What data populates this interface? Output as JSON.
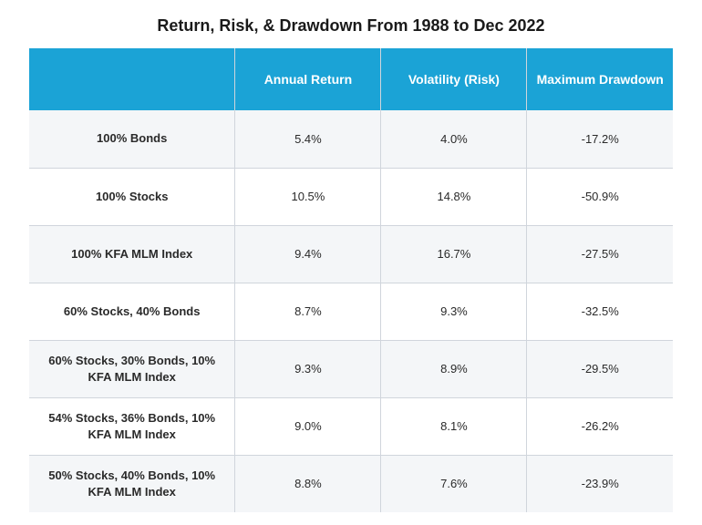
{
  "title": "Return, Risk, & Drawdown From 1988 to Dec 2022",
  "type": "table",
  "header_bg": "#1ba3d6",
  "header_fg": "#ffffff",
  "grid_color": "#d0d5dc",
  "row_alt_bg": "#f4f6f8",
  "row_bg": "#ffffff",
  "title_fontsize": 18,
  "header_fontsize": 14,
  "cell_fontsize": 13,
  "columns": [
    "",
    "Annual Return",
    "Volatility (Risk)",
    "Maximum Drawdown"
  ],
  "column_widths_pct": [
    32,
    22.666,
    22.666,
    22.666
  ],
  "rows": [
    {
      "label": "100% Bonds",
      "annual_return": "5.4%",
      "volatility": "4.0%",
      "max_drawdown": "-17.2%"
    },
    {
      "label": "100% Stocks",
      "annual_return": "10.5%",
      "volatility": "14.8%",
      "max_drawdown": "-50.9%"
    },
    {
      "label": "100% KFA MLM Index",
      "annual_return": "9.4%",
      "volatility": "16.7%",
      "max_drawdown": "-27.5%"
    },
    {
      "label": "60% Stocks, 40% Bonds",
      "annual_return": "8.7%",
      "volatility": "9.3%",
      "max_drawdown": "-32.5%"
    },
    {
      "label": "60% Stocks, 30% Bonds, 10% KFA MLM Index",
      "annual_return": "9.3%",
      "volatility": "8.9%",
      "max_drawdown": "-29.5%"
    },
    {
      "label": "54% Stocks, 36% Bonds, 10% KFA MLM Index",
      "annual_return": "9.0%",
      "volatility": "8.1%",
      "max_drawdown": "-26.2%"
    },
    {
      "label": "50% Stocks, 40% Bonds, 10% KFA MLM Index",
      "annual_return": "8.8%",
      "volatility": "7.6%",
      "max_drawdown": "-23.9%"
    }
  ]
}
